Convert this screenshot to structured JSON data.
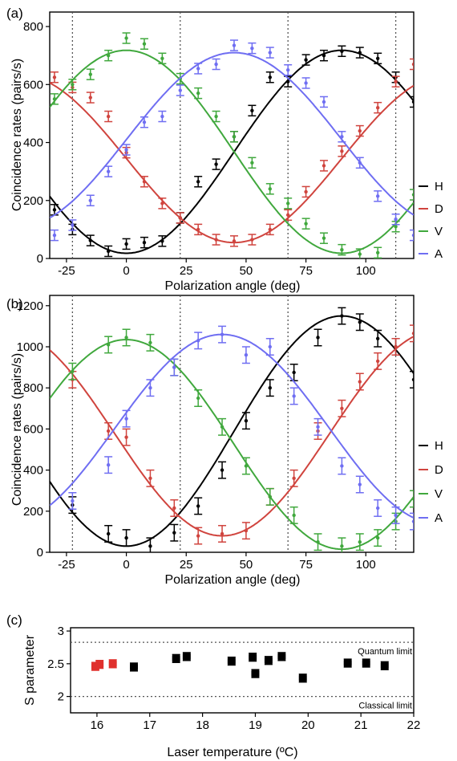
{
  "chart_data": [
    {
      "type": "scatter",
      "panel_label": "(a)",
      "xlabel": "Polarization angle (deg)",
      "ylabel": "Coincidence rates (pairs/s)",
      "xlim": [
        -32,
        120
      ],
      "ylim": [
        0,
        850
      ],
      "xticks": [
        "-25",
        "0",
        "25",
        "50",
        "75",
        "100"
      ],
      "xtick_values": [
        -25,
        0,
        25,
        50,
        75,
        100
      ],
      "yticks": [
        "0",
        "200",
        "400",
        "600",
        "800"
      ],
      "ytick_values": [
        0,
        200,
        400,
        600,
        800
      ],
      "vlines": [
        -22.5,
        22.5,
        67.5,
        112.5
      ],
      "legend": "right",
      "x": [
        -30,
        -22.5,
        -15,
        -7.5,
        0,
        7.5,
        15,
        22.5,
        30,
        37.5,
        45,
        52.5,
        60,
        67.5,
        75,
        82.5,
        90,
        97.5,
        105,
        112.5,
        120
      ],
      "series": [
        {
          "name": "H",
          "color": "#000000",
          "fit": {
            "amp": 350,
            "offset": 368,
            "phase": 90
          },
          "values": [
            168,
            100,
            62,
            25,
            50,
            55,
            60,
            140,
            265,
            325,
            420,
            510,
            625,
            610,
            685,
            700,
            715,
            710,
            690,
            625,
            540
          ],
          "err": 18
        },
        {
          "name": "D",
          "color": "#d0443e",
          "fit": {
            "amp": 290,
            "offset": 345,
            "phase": 135
          },
          "values": [
            625,
            590,
            555,
            490,
            365,
            265,
            190,
            140,
            100,
            65,
            60,
            65,
            100,
            150,
            230,
            320,
            370,
            440,
            520,
            610,
            670
          ],
          "err": 18
        },
        {
          "name": "V",
          "color": "#40a83d",
          "fit": {
            "amp": 350,
            "offset": 368,
            "phase": 0
          },
          "values": [
            550,
            600,
            635,
            700,
            760,
            740,
            690,
            620,
            570,
            490,
            420,
            330,
            240,
            190,
            120,
            70,
            30,
            15,
            20,
            110,
            220
          ],
          "err": 18
        },
        {
          "name": "A",
          "color": "#6f6ef2",
          "fit": {
            "amp": 300,
            "offset": 410,
            "phase": 45
          },
          "values": [
            80,
            115,
            200,
            300,
            375,
            470,
            490,
            580,
            655,
            670,
            735,
            725,
            710,
            650,
            605,
            540,
            420,
            330,
            215,
            135,
            80
          ],
          "err": 18
        }
      ]
    },
    {
      "type": "scatter",
      "panel_label": "(b)",
      "xlabel": "Polarization angle (deg)",
      "ylabel": "Coincidence rates (pairs/s)",
      "xlim": [
        -32,
        120
      ],
      "ylim": [
        0,
        1250
      ],
      "xticks": [
        "-25",
        "0",
        "25",
        "50",
        "75",
        "100"
      ],
      "xtick_values": [
        -25,
        0,
        25,
        50,
        75,
        100
      ],
      "yticks": [
        "0",
        "200",
        "400",
        "600",
        "800",
        "1000",
        "1200"
      ],
      "ytick_values": [
        0,
        200,
        400,
        600,
        800,
        1000,
        1200
      ],
      "vlines": [
        -22.5,
        22.5,
        67.5,
        112.5
      ],
      "legend": "right",
      "x": [
        -22.5,
        -7.5,
        0,
        10,
        20,
        30,
        40,
        50,
        60,
        70,
        80,
        90,
        97.5,
        105,
        112.5,
        120
      ],
      "series": [
        {
          "name": "H",
          "color": "#000000",
          "fit": {
            "amp": 560,
            "offset": 590,
            "phase": 90
          },
          "values": [
            230,
            90,
            70,
            30,
            95,
            225,
            400,
            640,
            800,
            875,
            1045,
            1150,
            1120,
            1040,
            1000,
            840
          ],
          "err": 40
        },
        {
          "name": "D",
          "color": "#d0443e",
          "fit": {
            "amp": 500,
            "offset": 580,
            "phase": 130
          },
          "values": [
            840,
            590,
            560,
            360,
            215,
            80,
            90,
            105,
            270,
            360,
            590,
            700,
            830,
            930,
            1000,
            1065
          ],
          "err": 40
        },
        {
          "name": "V",
          "color": "#40a83d",
          "fit": {
            "amp": 510,
            "offset": 525,
            "phase": 0
          },
          "values": [
            880,
            1010,
            1045,
            1020,
            900,
            750,
            610,
            420,
            270,
            180,
            50,
            30,
            50,
            70,
            150,
            260
          ],
          "err": 40
        },
        {
          "name": "A",
          "color": "#6f6ef2",
          "fit": {
            "amp": 460,
            "offset": 600,
            "phase": 40
          },
          "values": [
            250,
            425,
            650,
            800,
            900,
            1030,
            1060,
            960,
            1000,
            760,
            610,
            420,
            330,
            215,
            180,
            150
          ],
          "err": 40
        }
      ]
    },
    {
      "type": "scatter",
      "panel_label": "(c)",
      "xlabel": "Laser temperature (ºC)",
      "ylabel": "S parameter",
      "xlim": [
        15.5,
        22
      ],
      "ylim": [
        1.75,
        3.05
      ],
      "xticks": [
        "16",
        "17",
        "18",
        "19",
        "20",
        "21",
        "22"
      ],
      "xtick_values": [
        16,
        17,
        18,
        19,
        20,
        21,
        22
      ],
      "yticks": [
        "2",
        "2.5",
        "3"
      ],
      "ytick_values": [
        2,
        2.5,
        3
      ],
      "hlines": [
        {
          "y": 2.828,
          "label": "Quantum limit"
        },
        {
          "y": 2.0,
          "label": "Classical limit"
        }
      ],
      "points": [
        {
          "x": 15.97,
          "y": 2.46,
          "color": "#e0302d"
        },
        {
          "x": 16.05,
          "y": 2.49,
          "color": "#e0302d"
        },
        {
          "x": 16.3,
          "y": 2.5,
          "color": "#e0302d"
        },
        {
          "x": 16.7,
          "y": 2.45,
          "color": "#000000"
        },
        {
          "x": 17.5,
          "y": 2.58,
          "color": "#000000"
        },
        {
          "x": 17.7,
          "y": 2.61,
          "color": "#000000"
        },
        {
          "x": 18.55,
          "y": 2.54,
          "color": "#000000"
        },
        {
          "x": 18.95,
          "y": 2.6,
          "color": "#000000"
        },
        {
          "x": 19.0,
          "y": 2.35,
          "color": "#000000"
        },
        {
          "x": 19.25,
          "y": 2.55,
          "color": "#000000"
        },
        {
          "x": 19.5,
          "y": 2.61,
          "color": "#000000"
        },
        {
          "x": 19.9,
          "y": 2.28,
          "color": "#000000"
        },
        {
          "x": 20.75,
          "y": 2.51,
          "color": "#000000"
        },
        {
          "x": 21.1,
          "y": 2.51,
          "color": "#000000"
        },
        {
          "x": 21.45,
          "y": 2.47,
          "color": "#000000"
        }
      ],
      "err": 0.06
    }
  ]
}
